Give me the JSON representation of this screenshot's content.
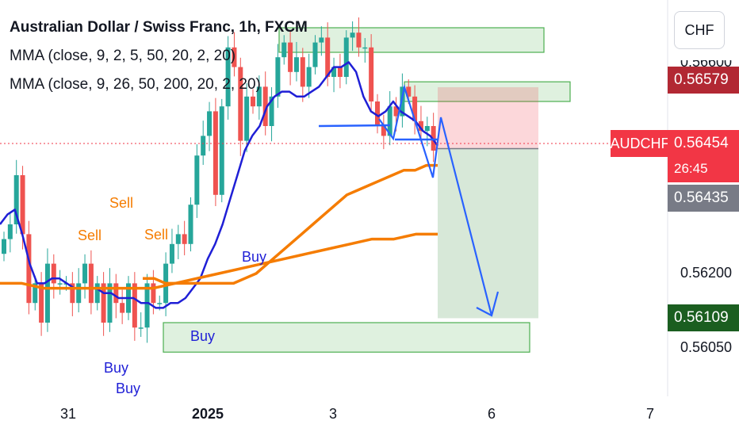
{
  "header": {
    "title": "Australian Dollar / Swiss Franc, 1h, FXCM",
    "indicator_1": "MMA (close, 9, 2, 5, 50, 20, 2, 20)",
    "indicator_2": "MMA (close, 9, 26, 50, 200, 20, 2, 20)"
  },
  "currency_button": "CHF",
  "price_scale": {
    "ticks": [
      "0.56200",
      "0.56050"
    ],
    "partial_tick": "0.56600",
    "labels": {
      "stop_price": "0.56579",
      "symbol_tag": "AUDCHF",
      "last_price": "0.56454",
      "countdown": "26:45",
      "mark_price": "0.56435",
      "target_price": "0.56109"
    },
    "colors": {
      "stop": "#b22833",
      "last": "#f23645",
      "mark": "#787b86",
      "target": "#1b5e20"
    }
  },
  "time_scale": {
    "ticks": [
      "31",
      "2025",
      "3",
      "6",
      "7"
    ]
  },
  "chart_data": {
    "type": "candlestick",
    "title": "Australian Dollar / Swiss Franc, 1h, FXCM",
    "symbol": "AUDCHF",
    "ylim": [
      0.5598,
      0.5672
    ],
    "close_path": [
      0.5627,
      0.563,
      0.564,
      0.5628,
      0.5614,
      0.5618,
      0.561,
      0.5622,
      0.5618,
      0.5618,
      0.5618,
      0.5614,
      0.5618,
      0.5622,
      0.5614,
      0.5618,
      0.561,
      0.5618,
      0.5614,
      0.5612,
      0.5618,
      0.5609,
      0.5609,
      0.5618,
      0.5614,
      0.5614,
      0.5622,
      0.5626,
      0.5628,
      0.5626,
      0.5634,
      0.5644,
      0.5648,
      0.5653,
      0.5636,
      0.5654,
      0.5666,
      0.5662,
      0.5647,
      0.5656,
      0.5654,
      0.5658,
      0.565,
      0.5656,
      0.5664,
      0.5667,
      0.5661,
      0.5664,
      0.5658,
      0.5662,
      0.5667,
      0.5668,
      0.566,
      0.5662,
      0.566,
      0.5668,
      0.5669,
      0.5666,
      0.5666,
      0.5655,
      0.565,
      0.5648,
      0.5654,
      0.5652,
      0.5658,
      0.5656,
      0.5651,
      0.5649,
      0.565,
      0.5645
    ],
    "ma_fast": [
      0.563,
      0.5632,
      0.5633,
      0.5628,
      0.5622,
      0.5618,
      0.5618,
      0.5619,
      0.5619,
      0.5618,
      0.5617,
      0.5617,
      0.5617,
      0.5617,
      0.5616,
      0.5616,
      0.5615,
      0.5615,
      0.5615,
      0.5614,
      0.5614,
      0.5613,
      0.5613,
      0.5614,
      0.5614,
      0.5615,
      0.5617,
      0.5619,
      0.5623,
      0.5626,
      0.563,
      0.5635,
      0.564,
      0.5645,
      0.5648,
      0.565,
      0.5654,
      0.5656,
      0.5657,
      0.5657,
      0.5656,
      0.5656,
      0.5657,
      0.5658,
      0.566,
      0.5662,
      0.5662,
      0.5663,
      0.5661,
      0.5656,
      0.5653,
      0.5652,
      0.5653,
      0.5655,
      0.5653,
      0.5652,
      0.5651,
      0.5649,
      0.5648,
      0.5646
    ],
    "ma_mid": [
      0.5619,
      0.5619,
      0.5618,
      0.5618,
      0.5618,
      0.5618,
      0.5618,
      0.5618,
      0.5618,
      0.5619,
      0.562,
      0.5622,
      0.5624,
      0.5626,
      0.5628,
      0.563,
      0.5632,
      0.5634,
      0.5636,
      0.5637,
      0.5638,
      0.5639,
      0.564,
      0.5641,
      0.5641,
      0.5642,
      0.5642
    ],
    "ma_slow": [
      0.5618,
      0.5618,
      0.5617,
      0.5617,
      0.5617,
      0.5617,
      0.5617,
      0.5617,
      0.5618,
      0.5619,
      0.562,
      0.5621,
      0.5622,
      0.5623,
      0.5624,
      0.5625,
      0.5626,
      0.5627,
      0.5627,
      0.5628,
      0.5628
    ],
    "annotations": {
      "signals": [
        "Sell",
        "Sell",
        "Sell",
        "Buy",
        "Buy",
        "Buy",
        "Buy"
      ],
      "supply_zone_1": [
        0.5665,
        0.567
      ],
      "supply_zone_2": [
        0.5655,
        0.5659
      ],
      "demand_zone": [
        0.5604,
        0.561
      ],
      "short_position": {
        "entry": 0.56454,
        "stop": 0.56579,
        "target": 0.56109
      }
    },
    "colors": {
      "up": "#26a69a",
      "down": "#ef5350",
      "ma_fast": "#1f1fd6",
      "ma_mid": "#f57c00",
      "ma_slow": "#f57c00",
      "zone": "#4caf50",
      "projection": "#2962ff"
    },
    "grid": false
  }
}
